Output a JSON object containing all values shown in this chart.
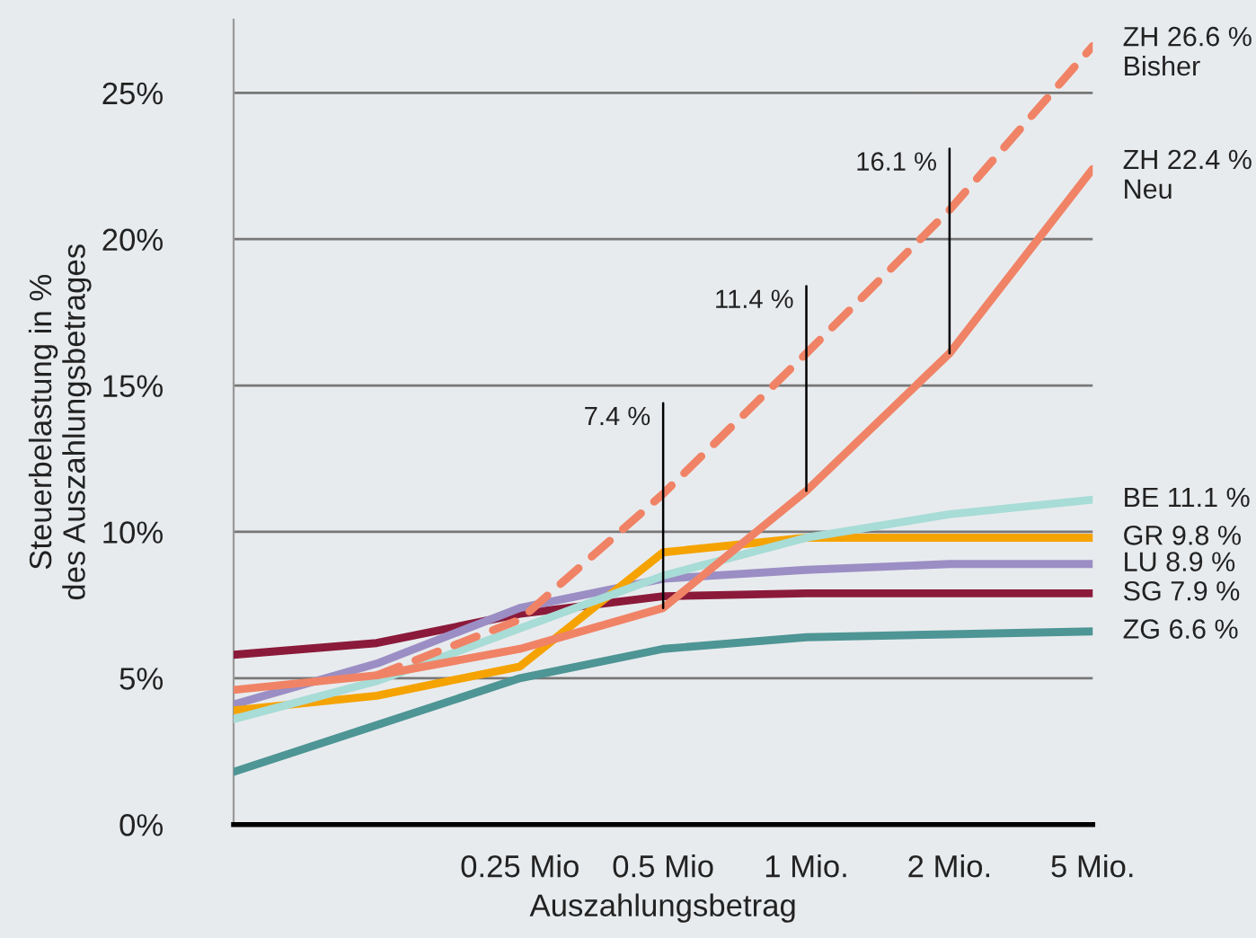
{
  "chart_data": {
    "type": "line",
    "xlabel": "Auszahlungsbetrag",
    "ylabel": "Steuerbelastung in %\ndes Auszahlungsbetrages",
    "categories": [
      null,
      null,
      "0.25 Mio",
      "0.5 Mio",
      "1 Mio.",
      "2 Mio.",
      "5 Mio."
    ],
    "yticks": [
      {
        "value": 0,
        "label": "0%"
      },
      {
        "value": 5,
        "label": "5%"
      },
      {
        "value": 10,
        "label": "10%"
      },
      {
        "value": 15,
        "label": "15%"
      },
      {
        "value": 20,
        "label": "20%"
      },
      {
        "value": 25,
        "label": "25%"
      }
    ],
    "ylim": [
      0,
      27.5
    ],
    "grid": "y",
    "legend": false,
    "marker": "none",
    "series": [
      {
        "name": "ZG 6.6 %",
        "color": "#4e9595",
        "values": [
          1.8,
          3.4,
          5.0,
          6.0,
          6.4,
          6.5,
          6.6
        ]
      },
      {
        "name": "SG 7.9 %",
        "color": "#8b1a3a",
        "values": [
          5.8,
          6.2,
          7.2,
          7.8,
          7.9,
          7.9,
          7.9
        ]
      },
      {
        "name": "LU 8.9 %",
        "color": "#9b8ec4",
        "values": [
          4.1,
          5.5,
          7.4,
          8.4,
          8.7,
          8.9,
          8.9
        ]
      },
      {
        "name": "GR 9.8 %",
        "color": "#f5a300",
        "values": [
          3.9,
          4.4,
          5.4,
          9.3,
          9.8,
          9.8,
          9.8
        ]
      },
      {
        "name": "BE 11.1 %",
        "color": "#a8dcd6",
        "values": [
          3.6,
          4.9,
          6.7,
          8.5,
          9.8,
          10.6,
          11.1
        ]
      },
      {
        "name": "ZH 22.4 %\nNeu",
        "color": "#f08366",
        "line_style": "solid",
        "values": [
          4.6,
          5.1,
          6.0,
          7.4,
          11.4,
          16.1,
          22.4
        ]
      },
      {
        "name": "ZH 26.6 %\nBisher",
        "color": "#f08366",
        "line_style": "dashed",
        "values": [
          null,
          5.1,
          7.0,
          11.3,
          16.1,
          21.0,
          26.6
        ]
      }
    ],
    "annotations": [
      {
        "text": "7.4 %",
        "x": "0.5 Mio",
        "y": 7.4
      },
      {
        "text": "11.4 %",
        "x": "1 Mio.",
        "y": 11.4
      },
      {
        "text": "16.1 %",
        "x": "2 Mio.",
        "y": 16.1
      }
    ]
  }
}
